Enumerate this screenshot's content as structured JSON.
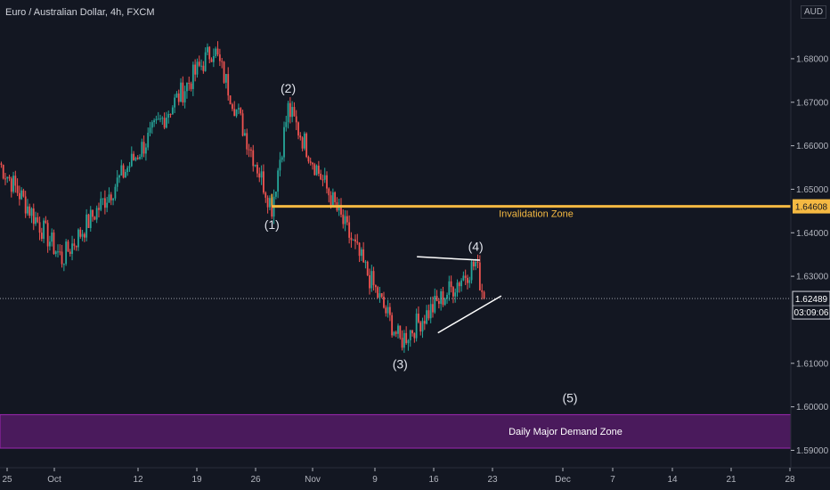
{
  "header": {
    "title": "Euro / Australian Dollar, 4h, FXCM",
    "currency": "AUD"
  },
  "price_axis": {
    "ticks": [
      "1.68000",
      "1.67000",
      "1.66000",
      "1.65000",
      "1.64000",
      "1.63000",
      "1.61000",
      "1.60000",
      "1.59000"
    ],
    "invalidation_price": "1.64608",
    "current_price": "1.62489",
    "countdown": "03:09:06"
  },
  "time_axis": {
    "labels": [
      "25",
      "Oct",
      "12",
      "19",
      "26",
      "Nov",
      "9",
      "16",
      "23",
      "Dec",
      "7",
      "14",
      "21",
      "28"
    ]
  },
  "annotations": {
    "invalidation_zone": "Invalidation Zone",
    "demand_zone": "Daily Major Demand Zone",
    "wave1": "(1)",
    "wave2": "(2)",
    "wave3": "(3)",
    "wave4": "(4)",
    "wave5": "(5)"
  },
  "colors": {
    "background": "#131722",
    "bull": "#26a69a",
    "bear": "#ef5350",
    "invalidation": "#f5b942",
    "demand_zone": "#4a1a5c",
    "demand_border": "#9c27b0",
    "grid_text": "#b2b5be"
  },
  "chart_data": {
    "type": "candlestick",
    "symbol": "EURAUD",
    "timeframe": "4h",
    "ylim": [
      1.586,
      1.6935
    ],
    "key_points": [
      {
        "label": "start",
        "date": "Sep 24",
        "price": 1.656
      },
      {
        "label": "low",
        "date": "Oct 2",
        "price": 1.634
      },
      {
        "label": "high",
        "date": "Oct 21",
        "price": 1.6825
      },
      {
        "label": "(1)",
        "date": "Oct 28",
        "price": 1.646
      },
      {
        "label": "(2)",
        "date": "Oct 30",
        "price": 1.6685
      },
      {
        "label": "(3)",
        "date": "Nov 12",
        "price": 1.615
      },
      {
        "label": "(4)",
        "date": "Nov 21",
        "price": 1.633
      },
      {
        "label": "last",
        "date": "Nov 22",
        "price": 1.62489
      }
    ],
    "invalidation_level": 1.64608,
    "demand_zone": [
      1.5905,
      1.5982
    ],
    "last_price": 1.62489
  }
}
